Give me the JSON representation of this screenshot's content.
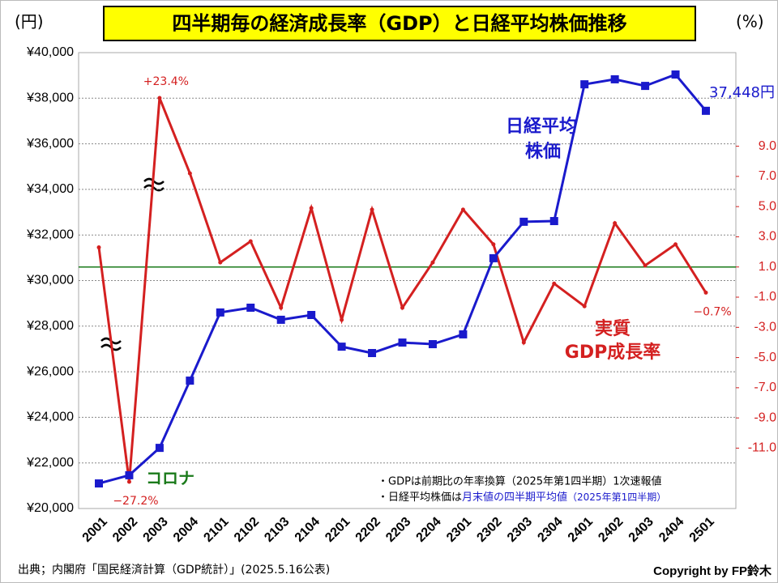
{
  "chart_data": {
    "type": "line",
    "title": "四半期毎の経済成長率（GDP）と日経平均株価推移",
    "y_axis_label": "(円)",
    "y2_axis_label": "(%)",
    "categories": [
      "2001",
      "2002",
      "2003",
      "2004",
      "2101",
      "2102",
      "2103",
      "2104",
      "2201",
      "2202",
      "2203",
      "2204",
      "2301",
      "2302",
      "2303",
      "2304",
      "2401",
      "2402",
      "2403",
      "2404",
      "2501"
    ],
    "series": [
      {
        "name": "日経平均株価",
        "color": "#1a1acc",
        "axis": "y",
        "values": [
          21100,
          21460,
          22660,
          25610,
          28600,
          28810,
          28280,
          28490,
          27100,
          26820,
          27280,
          27210,
          27640,
          30980,
          32580,
          32610,
          38610,
          38830,
          38540,
          39040,
          37448
        ],
        "value_labels": [
          null,
          null,
          null,
          null,
          null,
          null,
          null,
          null,
          null,
          null,
          null,
          null,
          null,
          null,
          null,
          null,
          null,
          null,
          null,
          null,
          "37,448円"
        ]
      },
      {
        "name": "実質GDP成長率",
        "color": "#d42020",
        "axis": "y2",
        "values": [
          2.3,
          -27.2,
          23.4,
          7.2,
          1.3,
          2.7,
          -1.7,
          4.9,
          -2.5,
          4.8,
          -1.7,
          1.3,
          4.8,
          2.5,
          -4.0,
          -0.1,
          -1.6,
          3.9,
          1.1,
          2.5,
          -0.7
        ],
        "value_labels": [
          null,
          "−27.2%",
          "+23.4%",
          null,
          null,
          null,
          null,
          null,
          null,
          null,
          null,
          null,
          null,
          null,
          null,
          null,
          null,
          null,
          null,
          null,
          "−0.7%"
        ]
      }
    ],
    "annotations": {
      "nikkei": [
        "日経平均",
        "株価"
      ],
      "gdp": [
        "実質",
        "GDP成長率"
      ],
      "corona": "コロナ"
    },
    "ylim": [
      20000,
      40000
    ],
    "yticks": [
      {
        "value": 20000,
        "label": "¥20,000"
      },
      {
        "value": 22000,
        "label": "¥22,000"
      },
      {
        "value": 24000,
        "label": "¥24,000"
      },
      {
        "value": 26000,
        "label": "¥26,000"
      },
      {
        "value": 28000,
        "label": "¥28,000"
      },
      {
        "value": 30000,
        "label": "¥30,000"
      },
      {
        "value": 32000,
        "label": "¥32,000"
      },
      {
        "value": 34000,
        "label": "¥34,000"
      },
      {
        "value": 36000,
        "label": "¥36,000"
      },
      {
        "value": 38000,
        "label": "¥38,000"
      },
      {
        "value": 40000,
        "label": "¥40,000"
      }
    ],
    "y2lim": [
      -15.0,
      15.2
    ],
    "y2ticks": [
      {
        "value": 9,
        "label": "9.0"
      },
      {
        "value": 7,
        "label": "7.0"
      },
      {
        "value": 5,
        "label": "5.0"
      },
      {
        "value": 3,
        "label": "3.0"
      },
      {
        "value": 1,
        "label": "1.0"
      },
      {
        "value": -1,
        "label": "-1.0"
      },
      {
        "value": -3,
        "label": "-3.0"
      },
      {
        "value": -5,
        "label": "-5.0"
      },
      {
        "value": -7,
        "label": "-7.0"
      },
      {
        "value": -9,
        "label": "-9.0"
      },
      {
        "value": -11,
        "label": "-11.0"
      }
    ],
    "reference_line": {
      "axis": "y2",
      "value": 1,
      "color": "#1a7a1a"
    },
    "grid": true,
    "notes": [
      "・GDPは前期比の年率換算（2025年第1四半期）1次速報値",
      [
        "・日経平均株価は",
        "月末値の四半期平均値",
        "（2025年第1四半期）"
      ]
    ],
    "source": "出典；内閣府「国民経済計算（GDP統計）」(2025.5.16公表)",
    "copyright": "Copyright by FP鈴木"
  }
}
